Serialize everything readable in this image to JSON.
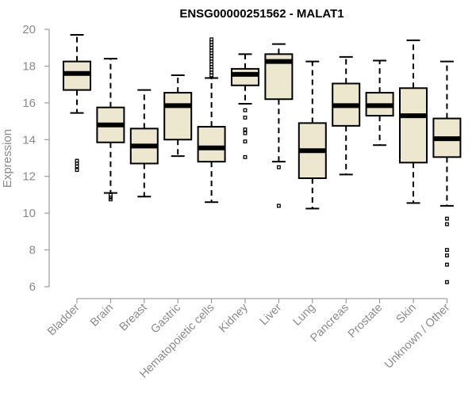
{
  "chart_data": {
    "type": "boxplot",
    "title": "ENSG00000251562 - MALAT1",
    "xlabel": "",
    "ylabel": "Expression",
    "ylim": [
      6,
      20
    ],
    "yticks": [
      6,
      8,
      10,
      12,
      14,
      16,
      18,
      20
    ],
    "grid": false,
    "colors": {
      "box_fill": "#ede7cf",
      "stroke": "#000000",
      "axis": "#8a8a8a"
    },
    "categories": [
      "Bladder",
      "Brain",
      "Breast",
      "Gastric",
      "Hematopoietic cells",
      "Kidney",
      "Liver",
      "Lung",
      "Pancreas",
      "Prostate",
      "Skin",
      "Unknown / Other"
    ],
    "boxes": [
      {
        "name": "Bladder",
        "whislo": 15.45,
        "q1": 16.7,
        "med": 17.6,
        "q3": 18.25,
        "whishi": 19.7,
        "fliers": [
          12.85,
          12.7,
          12.55,
          12.35
        ]
      },
      {
        "name": "Brain",
        "whislo": 11.1,
        "q1": 13.85,
        "med": 14.8,
        "q3": 15.75,
        "whishi": 18.4,
        "fliers": [
          11.0,
          10.85,
          10.75
        ]
      },
      {
        "name": "Breast",
        "whislo": 10.9,
        "q1": 12.7,
        "med": 13.65,
        "q3": 14.6,
        "whishi": 16.7,
        "fliers": []
      },
      {
        "name": "Gastric",
        "whislo": 13.1,
        "q1": 14.0,
        "med": 15.85,
        "q3": 16.55,
        "whishi": 17.5,
        "fliers": []
      },
      {
        "name": "Hematopoietic cells",
        "whislo": 10.6,
        "q1": 12.8,
        "med": 13.55,
        "q3": 14.7,
        "whishi": 17.35,
        "fliers": [
          17.5,
          17.65,
          17.8,
          17.95,
          18.1,
          18.25,
          18.4,
          18.55,
          18.7,
          18.85,
          19.0,
          19.15,
          19.3,
          19.45
        ]
      },
      {
        "name": "Kidney",
        "whislo": 15.95,
        "q1": 16.95,
        "med": 17.55,
        "q3": 17.85,
        "whishi": 18.65,
        "fliers": [
          15.6,
          15.2,
          14.55,
          14.35,
          13.9,
          13.05
        ]
      },
      {
        "name": "Liver",
        "whislo": 12.8,
        "q1": 16.2,
        "med": 18.25,
        "q3": 18.65,
        "whishi": 19.2,
        "fliers": [
          12.5,
          10.4
        ]
      },
      {
        "name": "Lung",
        "whislo": 10.25,
        "q1": 11.9,
        "med": 13.4,
        "q3": 14.9,
        "whishi": 18.25,
        "fliers": []
      },
      {
        "name": "Pancreas",
        "whislo": 12.1,
        "q1": 14.75,
        "med": 15.85,
        "q3": 17.05,
        "whishi": 18.5,
        "fliers": []
      },
      {
        "name": "Prostate",
        "whislo": 13.7,
        "q1": 15.3,
        "med": 15.85,
        "q3": 16.55,
        "whishi": 18.3,
        "fliers": []
      },
      {
        "name": "Skin",
        "whislo": 10.55,
        "q1": 12.75,
        "med": 15.3,
        "q3": 16.8,
        "whishi": 19.4,
        "fliers": []
      },
      {
        "name": "Unknown / Other",
        "whislo": 10.4,
        "q1": 13.05,
        "med": 14.05,
        "q3": 15.15,
        "whishi": 18.25,
        "fliers": [
          9.7,
          9.4,
          8.0,
          7.7,
          7.2,
          6.25
        ]
      }
    ]
  }
}
